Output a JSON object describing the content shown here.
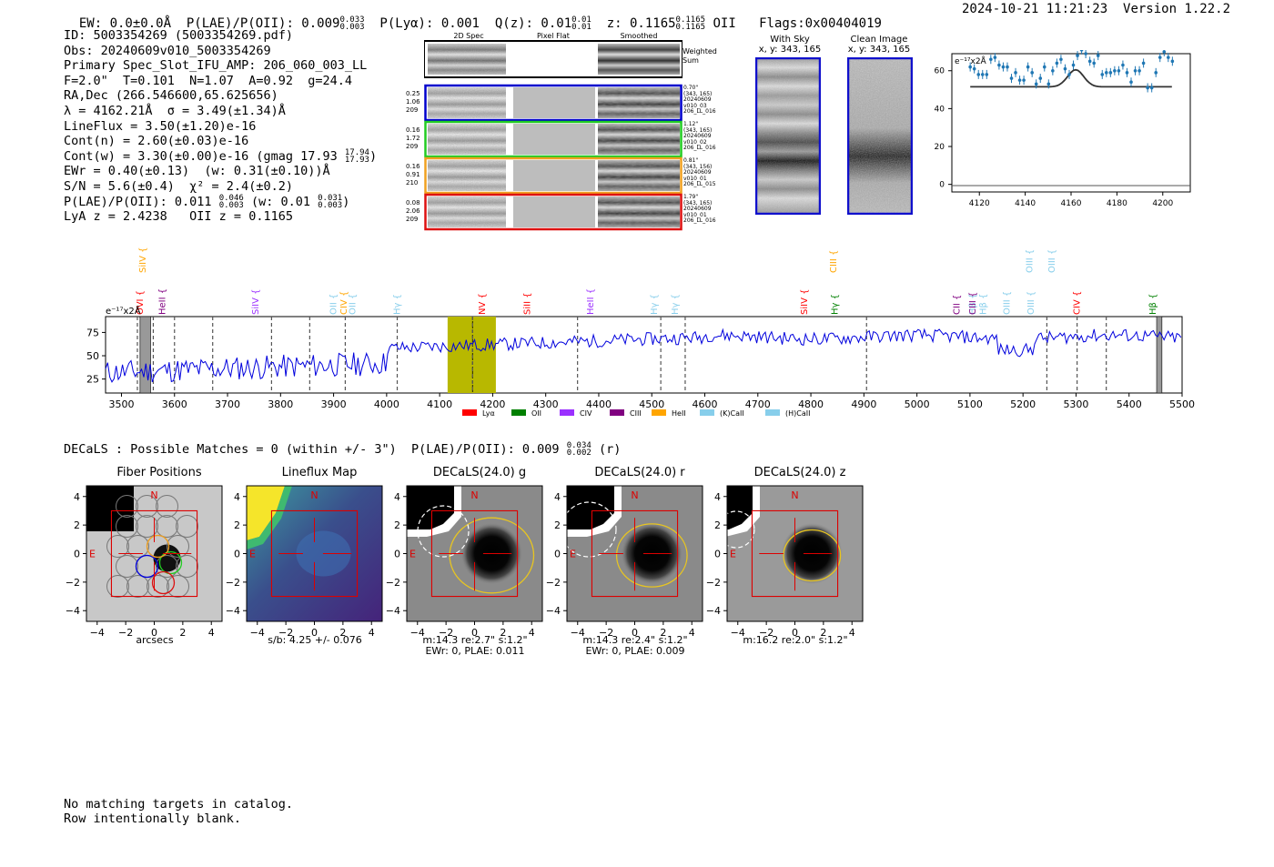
{
  "header": {
    "ew": "EW: 0.0±0.0Å",
    "plae_label": "P(LAE)/P(OII): 0.009",
    "plae_hi": "0.033",
    "plae_lo": "0.003",
    "plya": "P(Lyα): 0.001",
    "qz_label": "Q(z): 0.01",
    "qz_hi": "0.01",
    "qz_lo": "0.01",
    "z_label": "z: 0.1165",
    "z_hi": "0.1165",
    "z_lo": "0.1165",
    "z_line": "OII",
    "flags": "Flags:0x00404019",
    "timestamp": "2024-10-21 11:21:23",
    "version": "Version 1.22.2"
  },
  "info": {
    "id": "ID: 5003354269 (5003354269.pdf)",
    "obs": "Obs: 20240609v010_5003354269",
    "primary": "Primary Spec_Slot_IFU_AMP: 206_060_003_LL",
    "fit": "F=2.0\"  T=0.101  N=1.07  A=0.92  g=24.4",
    "radec": "RA,Dec (266.546600,65.625656)",
    "lambda": "λ = 4162.21Å  σ = 3.49(±1.34)Å",
    "lineflux": "LineFlux = 3.50(±1.20)e-16",
    "contn": "Cont(n) = 2.60(±0.03)e-16",
    "contw_label": "Cont(w) = 3.30(±0.00)e-16 (gmag 17.93",
    "contw_hi": "17.94",
    "contw_lo": "17.93",
    "contw_end": ")",
    "ewr": "EWr = 0.40(±0.13)  (w: 0.31(±0.10))Å",
    "sn": "S/N = 5.6(±0.4)  χ² = 2.4(±0.2)",
    "plae2_label": "P(LAE)/P(OII): 0.011",
    "plae2_hi": "0.046",
    "plae2_lo": "0.003",
    "plae2_w": "(w: 0.01",
    "plae2_whi": "0.031",
    "plae2_wlo": "0.003",
    "plae2_end": ")",
    "lya": "LyA z = 2.4238   OII z = 0.1165"
  },
  "cutouts": {
    "col_2dspec": "2D Spec",
    "col_pixflat": "Pixel Flat",
    "col_smoothed": "Smoothed",
    "weighted_sum": "Weighted Sum",
    "rows": [
      {
        "vals": [
          "0.25",
          "1.06",
          "209"
        ],
        "stamp": [
          "0.70\"",
          "(343, 165)",
          "20240609",
          "v010_03",
          "206_LL_016"
        ],
        "color": "#0000cc"
      },
      {
        "vals": [
          "0.16",
          "1.72",
          "209"
        ],
        "stamp": [
          "1.12\"",
          "(343, 165)",
          "20240609",
          "v010_02",
          "206_LL_016"
        ],
        "color": "#22cc22"
      },
      {
        "vals": [
          "0.16",
          "0.91",
          "210"
        ],
        "stamp": [
          "0.81\"",
          "(343, 156)",
          "20240609",
          "v010_01",
          "206_LL_015"
        ],
        "color": "#f0a020"
      },
      {
        "vals": [
          "0.08",
          "2.06",
          "209"
        ],
        "stamp": [
          "1.79\"",
          "(343, 165)",
          "20240609",
          "v010_01",
          "206_LL_016"
        ],
        "color": "#dd1111"
      }
    ]
  },
  "sky": {
    "with_sky": "With Sky",
    "with_sky_xy": "x, y: 343, 165",
    "clean": "Clean Image",
    "clean_xy": "x, y: 343, 165"
  },
  "zoom_chart": {
    "ylabel_unit": "e⁻¹⁷x2Å",
    "yticks": [
      "0",
      "20",
      "40",
      "60"
    ],
    "xticks": [
      "4120",
      "4140",
      "4160",
      "4180",
      "4200"
    ]
  },
  "spectrum": {
    "unit": "e⁻¹⁷x2Å",
    "yticks": [
      "25",
      "50",
      "75"
    ],
    "xticks": [
      "3500",
      "3600",
      "3700",
      "3800",
      "3900",
      "4000",
      "4100",
      "4200",
      "4300",
      "4400",
      "4500",
      "4600",
      "4700",
      "4800",
      "4900",
      "5000",
      "5100",
      "5200",
      "5300",
      "5400",
      "5500"
    ],
    "legend": [
      {
        "name": "Lyα",
        "color": "#ff0000"
      },
      {
        "name": "OII",
        "color": "#008000"
      },
      {
        "name": "CIV",
        "color": "#9b30ff"
      },
      {
        "name": "CIII",
        "color": "#800080"
      },
      {
        "name": "HeII",
        "color": "#ffa500"
      },
      {
        "name": "(K)CaII",
        "color": "#87ceeb"
      },
      {
        "name": "(H)CaII",
        "color": "#87ceeb"
      }
    ],
    "lines": [
      {
        "name": "SiIV",
        "color": "#ffa500",
        "high": true
      },
      {
        "name": "OVI",
        "color": "#ff0000",
        "high": false
      },
      {
        "name": "HeII",
        "color": "#800080",
        "high": false
      },
      {
        "name": "SiIV",
        "color": "#9b30ff",
        "high": false
      },
      {
        "name": "OII",
        "color": "#87ceeb",
        "high": false
      },
      {
        "name": "CIV",
        "color": "#ffa500",
        "high": false
      },
      {
        "name": "OII",
        "color": "#87ceeb",
        "high": false
      },
      {
        "name": "Hγ",
        "color": "#87ceeb",
        "high": false
      },
      {
        "name": "NV",
        "color": "#ff0000",
        "high": false
      },
      {
        "name": "SiII",
        "color": "#ff0000",
        "high": false
      },
      {
        "name": "HeII",
        "color": "#9b30ff",
        "high": false
      },
      {
        "name": "Hγ",
        "color": "#87ceeb",
        "high": false
      },
      {
        "name": "Hγ",
        "color": "#87ceeb",
        "high": false
      },
      {
        "name": "SiIV",
        "color": "#ff0000",
        "high": false
      },
      {
        "name": "CIII",
        "color": "#ffa500",
        "high": true
      },
      {
        "name": "Hγ",
        "color": "#008000",
        "high": false
      },
      {
        "name": "CII",
        "color": "#800080",
        "high": false
      },
      {
        "name": "Hβ",
        "color": "#87ceeb",
        "high": false
      },
      {
        "name": "CIII",
        "color": "#800080",
        "high": false
      },
      {
        "name": "Hβ",
        "color": "#87ceeb",
        "high": false
      },
      {
        "name": "OIII",
        "color": "#87ceeb",
        "high": false
      },
      {
        "name": "OIII",
        "color": "#87ceeb",
        "high": true
      },
      {
        "name": "OIII",
        "color": "#87ceeb",
        "high": false
      },
      {
        "name": "OIII",
        "color": "#87ceeb",
        "high": true
      },
      {
        "name": "CIV",
        "color": "#ff0000",
        "high": false
      },
      {
        "name": "Hβ",
        "color": "#008000",
        "high": false
      }
    ]
  },
  "decals": {
    "header": "DECaLS : Possible Matches = 0 (within +/- 3\")  P(LAE)/P(OII): 0.009",
    "hi": "0.034",
    "lo": "0.002",
    "band": "(r)",
    "ticks": [
      "4",
      "2",
      "0",
      "−2",
      "−4"
    ],
    "xticks": [
      "−4",
      "−2",
      "0",
      "2",
      "4"
    ],
    "north": "N",
    "east": "E",
    "panels": [
      {
        "title": "Fiber Positions",
        "caption": [
          "arcsecs"
        ]
      },
      {
        "title": "Lineflux Map",
        "caption": [
          "s/b: 4.25 +/- 0.076"
        ]
      },
      {
        "title": "DECaLS(24.0) g",
        "caption": [
          "m:14.3  re:2.7\"  s:1.2\"",
          "EWr: 0, PLAE: 0.011"
        ]
      },
      {
        "title": "DECaLS(24.0) r",
        "caption": [
          "m:14.3  re:2.4\"  s:1.2\"",
          "EWr: 0, PLAE: 0.009"
        ]
      },
      {
        "title": "DECaLS(24.0) z",
        "caption": [
          "m:16.2  re:2.0\"  s:1.2\""
        ]
      }
    ]
  },
  "footer": {
    "line1": "No matching targets in catalog.",
    "line2": "Row intentionally blank."
  }
}
